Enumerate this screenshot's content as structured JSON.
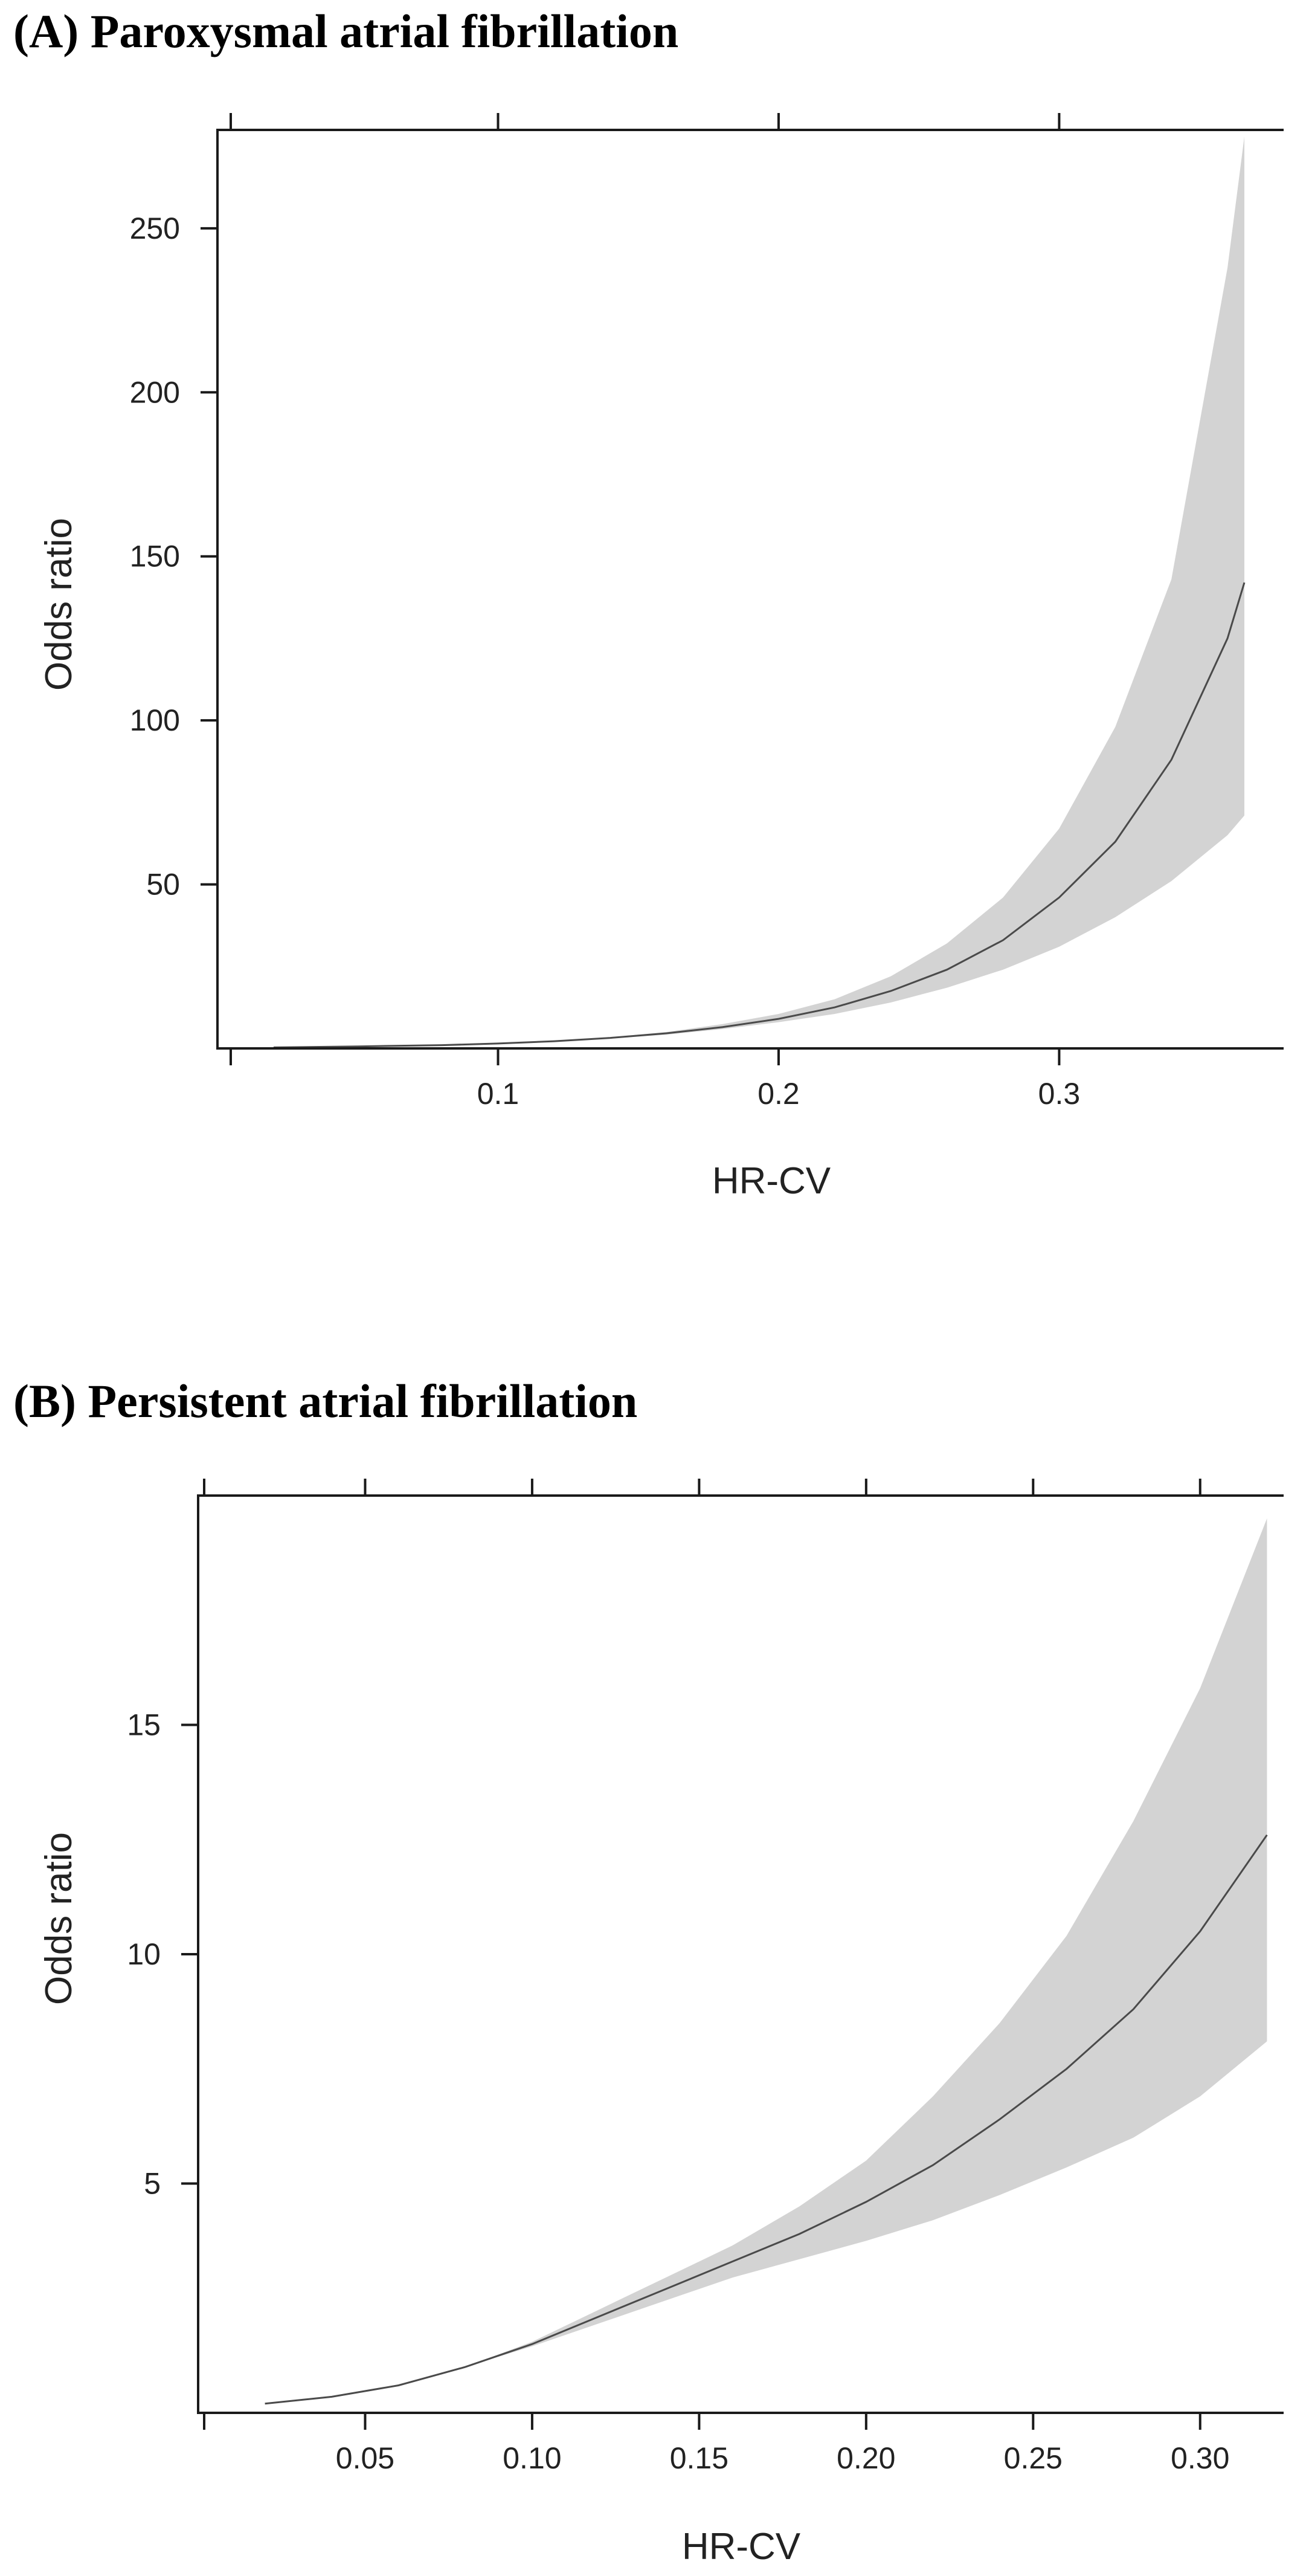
{
  "chart_data": [
    {
      "type": "line",
      "title": "(A) Paroxysmal atrial fibrillation",
      "xlabel": "HR-CV",
      "ylabel": "Odds ratio",
      "xlim": [
        0.0,
        0.38
      ],
      "ylim": [
        0,
        280
      ],
      "x_ticks": [
        0.1,
        0.2,
        0.3
      ],
      "x_tick_labels": [
        "0.1",
        "0.2",
        "0.3"
      ],
      "y_ticks": [
        50,
        100,
        150,
        200,
        250
      ],
      "y_tick_labels": [
        "50",
        "100",
        "150",
        "200",
        "250"
      ],
      "grid": false,
      "legend": "none",
      "band_color": "#d3d3d3",
      "line_color": "#4a4a4a",
      "series": [
        {
          "x": [
            0.02,
            0.05,
            0.08,
            0.1,
            0.12,
            0.14,
            0.16,
            0.18,
            0.2,
            0.22,
            0.24,
            0.26,
            0.28,
            0.3,
            0.32,
            0.34,
            0.36,
            0.366
          ],
          "y": [
            0.3,
            0.6,
            1.0,
            1.5,
            2.2,
            3.2,
            4.6,
            6.5,
            9.0,
            12.5,
            17.5,
            24,
            33,
            46,
            63,
            88,
            125,
            142
          ],
          "lower": [
            0.3,
            0.6,
            1.0,
            1.5,
            2.2,
            3.0,
            4.2,
            5.9,
            8.0,
            10.5,
            14,
            18.5,
            24,
            31,
            40,
            51,
            65,
            71
          ],
          "upper": [
            0.3,
            0.6,
            1.0,
            1.5,
            2.2,
            3.4,
            5.0,
            7.4,
            10.5,
            15,
            22,
            32,
            46,
            67,
            98,
            143,
            238,
            278
          ]
        }
      ]
    },
    {
      "type": "line",
      "title": "(B) Persistent atrial fibrillation",
      "xlabel": "HR-CV",
      "ylabel": "Odds ratio",
      "xlim": [
        0.0,
        0.325
      ],
      "ylim": [
        0,
        20
      ],
      "x_ticks": [
        0.05,
        0.1,
        0.15,
        0.2,
        0.25,
        0.3
      ],
      "x_tick_labels": [
        "0.05",
        "0.10",
        "0.15",
        "0.20",
        "0.25",
        "0.30"
      ],
      "y_ticks": [
        5,
        10,
        15
      ],
      "y_tick_labels": [
        "5",
        "10",
        "15"
      ],
      "grid": false,
      "legend": "none",
      "band_color": "#d3d3d3",
      "line_color": "#4a4a4a",
      "series": [
        {
          "x": [
            0.02,
            0.04,
            0.06,
            0.08,
            0.1,
            0.12,
            0.14,
            0.16,
            0.18,
            0.2,
            0.22,
            0.24,
            0.26,
            0.28,
            0.3,
            0.32
          ],
          "y": [
            0.2,
            0.35,
            0.6,
            1.0,
            1.5,
            2.1,
            2.7,
            3.3,
            3.9,
            4.6,
            5.4,
            6.4,
            7.5,
            8.8,
            10.5,
            12.6
          ],
          "lower": [
            0.2,
            0.35,
            0.6,
            1.0,
            1.45,
            1.95,
            2.45,
            2.95,
            3.35,
            3.75,
            4.2,
            4.75,
            5.35,
            6.0,
            6.9,
            8.1
          ],
          "upper": [
            0.2,
            0.35,
            0.6,
            1.0,
            1.55,
            2.25,
            2.95,
            3.65,
            4.5,
            5.5,
            6.9,
            8.5,
            10.4,
            12.9,
            15.8,
            19.5
          ]
        }
      ]
    }
  ]
}
